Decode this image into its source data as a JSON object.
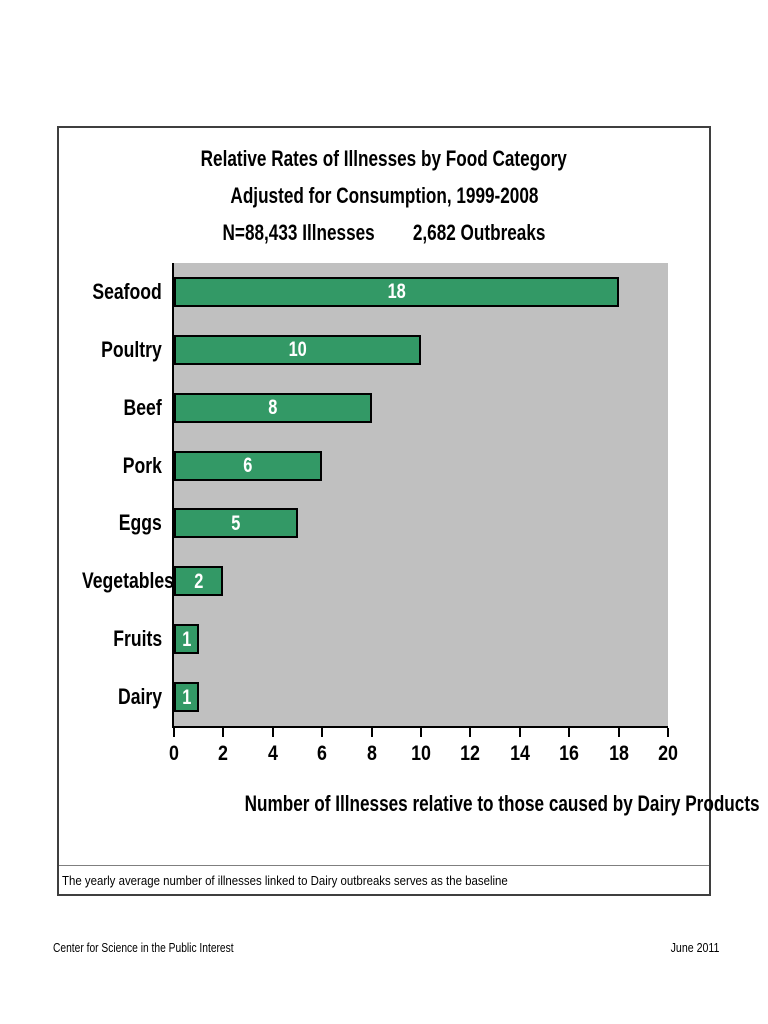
{
  "page": {
    "footer_left": "Center for Science in the Public Interest",
    "footer_right": "June 2011"
  },
  "chart_data": {
    "type": "bar",
    "orientation": "horizontal",
    "title_lines": [
      "Relative Rates of Illnesses by Food Category",
      "Adjusted for Consumption, 1999-2008",
      "N=88,433 Illnesses        2,682 Outbreaks"
    ],
    "categories": [
      "Seafood",
      "Poultry",
      "Beef",
      "Pork",
      "Eggs",
      "Vegetables",
      "Fruits",
      "Dairy"
    ],
    "values": [
      18,
      10,
      8,
      6,
      5,
      2,
      1,
      1
    ],
    "value_labels": [
      "18",
      "10",
      "8",
      "6",
      "5",
      "2",
      "1",
      "1"
    ],
    "xlabel": "Number of Illnesses relative to those caused by Dairy Products",
    "ylabel": "",
    "xlim": [
      0,
      20
    ],
    "xticks": [
      0,
      2,
      4,
      6,
      8,
      10,
      12,
      14,
      16,
      18,
      20
    ],
    "grid": false,
    "legend": null,
    "bar_color": "#339966",
    "bar_border_color": "#000000",
    "plot_bg_color": "#c0c0c0",
    "value_label_color": "#ffffff",
    "footnote": "The yearly average number of illnesses linked to Dairy outbreaks serves as the baseline"
  }
}
